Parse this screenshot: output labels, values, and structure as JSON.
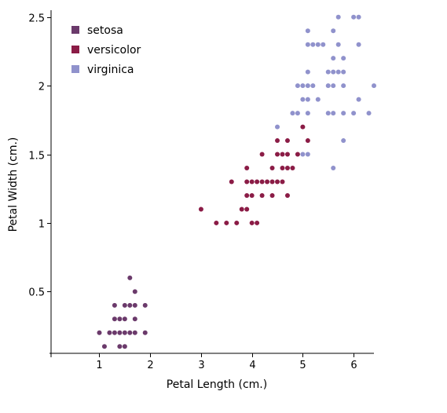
{
  "chart_data": {
    "type": "scatter",
    "title": "",
    "xlabel": "Petal Length (cm.)",
    "ylabel": "Petal Width (cm.)",
    "xlim": [
      0.05,
      6.4
    ],
    "ylim": [
      0.05,
      2.55
    ],
    "xticks": [
      1,
      2,
      3,
      4,
      5,
      6
    ],
    "yticks": [
      0.5,
      1,
      1.5,
      2,
      2.5
    ],
    "xtick_labels": [
      "1",
      "2",
      "3",
      "4",
      "5",
      "6"
    ],
    "ytick_labels": [
      "0.5",
      "1",
      "1.5",
      "2",
      "2.5"
    ],
    "grid": false,
    "legend_position": "top-left",
    "series": [
      {
        "name": "setosa",
        "color": "#6b3a6b",
        "points": [
          [
            1.0,
            0.2
          ],
          [
            1.2,
            0.2
          ],
          [
            1.3,
            0.2
          ],
          [
            1.4,
            0.2
          ],
          [
            1.5,
            0.2
          ],
          [
            1.6,
            0.2
          ],
          [
            1.7,
            0.2
          ],
          [
            1.9,
            0.2
          ],
          [
            1.1,
            0.1
          ],
          [
            1.4,
            0.1
          ],
          [
            1.5,
            0.1
          ],
          [
            1.3,
            0.3
          ],
          [
            1.4,
            0.3
          ],
          [
            1.5,
            0.3
          ],
          [
            1.7,
            0.3
          ],
          [
            1.3,
            0.4
          ],
          [
            1.5,
            0.4
          ],
          [
            1.6,
            0.4
          ],
          [
            1.7,
            0.4
          ],
          [
            1.9,
            0.4
          ],
          [
            1.7,
            0.5
          ],
          [
            1.6,
            0.6
          ]
        ]
      },
      {
        "name": "versicolor",
        "color": "#8b1c46",
        "points": [
          [
            3.3,
            1.0
          ],
          [
            3.5,
            1.0
          ],
          [
            3.7,
            1.0
          ],
          [
            4.0,
            1.0
          ],
          [
            4.1,
            1.0
          ],
          [
            3.0,
            1.1
          ],
          [
            3.8,
            1.1
          ],
          [
            3.9,
            1.1
          ],
          [
            3.9,
            1.2
          ],
          [
            4.0,
            1.2
          ],
          [
            4.2,
            1.2
          ],
          [
            4.4,
            1.2
          ],
          [
            4.7,
            1.2
          ],
          [
            3.6,
            1.3
          ],
          [
            3.9,
            1.3
          ],
          [
            4.0,
            1.3
          ],
          [
            4.1,
            1.3
          ],
          [
            4.2,
            1.3
          ],
          [
            4.3,
            1.3
          ],
          [
            4.4,
            1.3
          ],
          [
            4.5,
            1.3
          ],
          [
            4.6,
            1.3
          ],
          [
            3.9,
            1.4
          ],
          [
            4.4,
            1.4
          ],
          [
            4.6,
            1.4
          ],
          [
            4.7,
            1.4
          ],
          [
            4.8,
            1.4
          ],
          [
            4.2,
            1.5
          ],
          [
            4.5,
            1.5
          ],
          [
            4.6,
            1.5
          ],
          [
            4.7,
            1.5
          ],
          [
            4.9,
            1.5
          ],
          [
            4.5,
            1.6
          ],
          [
            4.7,
            1.6
          ],
          [
            5.1,
            1.6
          ],
          [
            5.0,
            1.7
          ]
        ]
      },
      {
        "name": "virginica",
        "color": "#9092cc",
        "points": [
          [
            5.0,
            1.5
          ],
          [
            5.1,
            1.5
          ],
          [
            5.6,
            1.4
          ],
          [
            4.5,
            1.7
          ],
          [
            5.8,
            1.6
          ],
          [
            4.8,
            1.8
          ],
          [
            4.9,
            1.8
          ],
          [
            5.1,
            1.8
          ],
          [
            5.5,
            1.8
          ],
          [
            5.6,
            1.8
          ],
          [
            5.8,
            1.8
          ],
          [
            6.0,
            1.8
          ],
          [
            6.3,
            1.8
          ],
          [
            5.3,
            1.9
          ],
          [
            5.0,
            1.9
          ],
          [
            5.1,
            1.9
          ],
          [
            6.1,
            1.9
          ],
          [
            4.9,
            2.0
          ],
          [
            5.0,
            2.0
          ],
          [
            5.1,
            2.0
          ],
          [
            5.2,
            2.0
          ],
          [
            5.5,
            2.0
          ],
          [
            5.6,
            2.0
          ],
          [
            5.8,
            2.0
          ],
          [
            6.4,
            2.0
          ],
          [
            5.1,
            2.1
          ],
          [
            5.6,
            2.1
          ],
          [
            5.5,
            2.1
          ],
          [
            5.7,
            2.1
          ],
          [
            5.8,
            2.1
          ],
          [
            5.6,
            2.2
          ],
          [
            5.8,
            2.2
          ],
          [
            5.1,
            2.3
          ],
          [
            5.2,
            2.3
          ],
          [
            5.3,
            2.3
          ],
          [
            5.4,
            2.3
          ],
          [
            5.7,
            2.3
          ],
          [
            6.1,
            2.3
          ],
          [
            5.1,
            2.4
          ],
          [
            5.6,
            2.4
          ],
          [
            5.7,
            2.5
          ],
          [
            6.0,
            2.5
          ],
          [
            6.1,
            2.5
          ]
        ]
      }
    ]
  }
}
